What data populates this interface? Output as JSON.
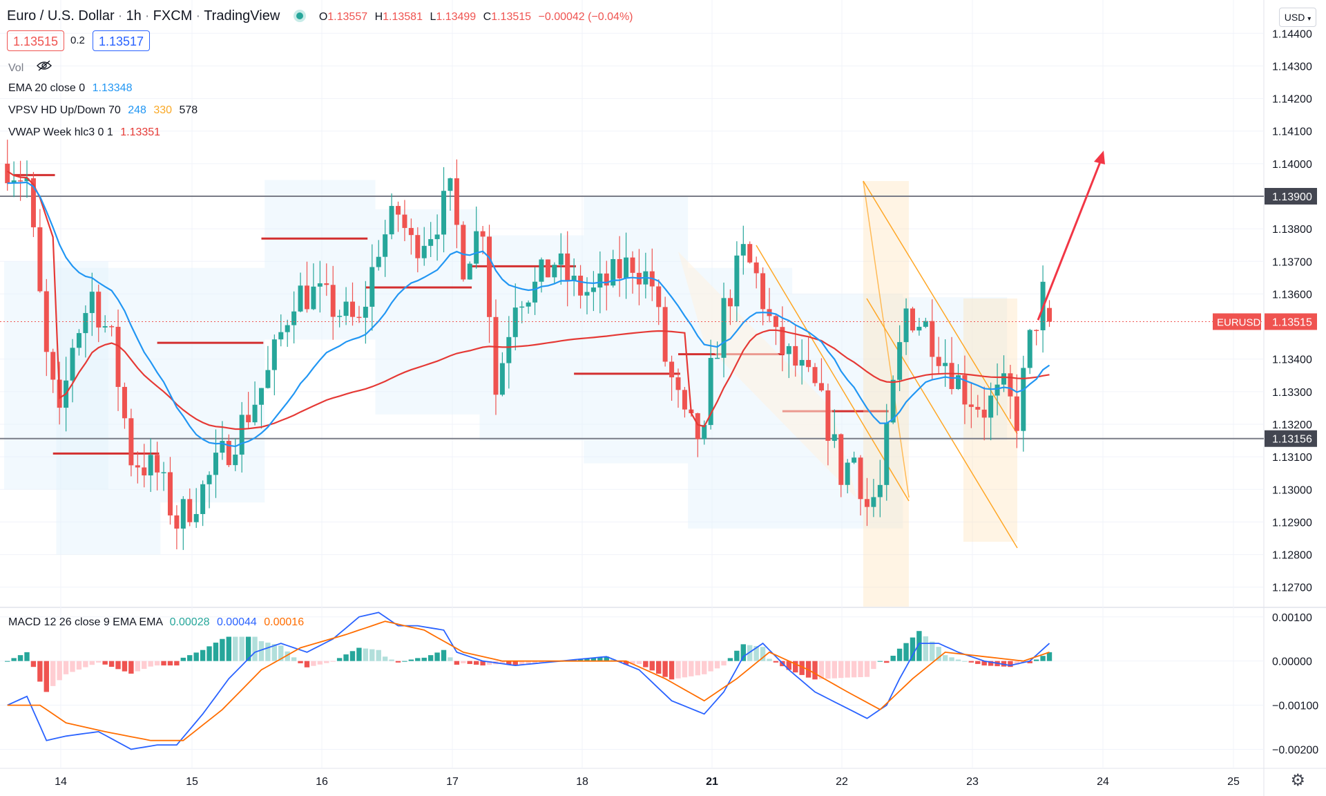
{
  "header": {
    "symbol": "Euro / U.S. Dollar",
    "interval": "1h",
    "exchange": "FXCM",
    "source": "TradingView",
    "ohlc": {
      "o_label": "O",
      "o": "1.13557",
      "h_label": "H",
      "h": "1.13581",
      "l_label": "L",
      "l": "1.13499",
      "c_label": "C",
      "c": "1.13515",
      "change": "−0.00042 (−0.04%)"
    },
    "bid": "1.13515",
    "spread": "0.2",
    "ask": "1.13517",
    "currency_button": "USD"
  },
  "indicators": {
    "vol": {
      "label": "Vol"
    },
    "ema": {
      "label": "EMA 20 close 0",
      "value": "1.13348"
    },
    "vpsv": {
      "label": "VPSV HD Up/Down 70",
      "up": "248",
      "down": "330",
      "total": "578"
    },
    "vwap": {
      "label": "VWAP Week hlc3 0 1",
      "value": "1.13351"
    },
    "macd": {
      "label": "MACD 12 26 close 9 EMA EMA",
      "hist": "0.00028",
      "macd": "0.00044",
      "signal": "0.00016"
    }
  },
  "colors": {
    "up": "#26a69a",
    "down": "#ef5350",
    "ema": "#2196f3",
    "vwap": "#e53935",
    "macd_line": "#2962ff",
    "signal_line": "#ff6d00",
    "hline": "#787b86",
    "arrow": "#f23645"
  },
  "chart_data": {
    "type": "candlestick",
    "symbol": "EURUSD",
    "current_price": "1.13515",
    "y_axis": {
      "ticks": [
        "1.14400",
        "1.14300",
        "1.14200",
        "1.14100",
        "1.14000",
        "1.13800",
        "1.13700",
        "1.13600",
        "1.13400",
        "1.13300",
        "1.13200",
        "1.13100",
        "1.13000",
        "1.12900",
        "1.12800",
        "1.12700"
      ],
      "range": [
        1.1264,
        1.1446
      ]
    },
    "x_axis": {
      "ticks": [
        "14",
        "15",
        "16",
        "17",
        "18",
        "21",
        "22",
        "23",
        "24",
        "25"
      ]
    },
    "horizontal_levels": [
      {
        "label": "1.13900",
        "value": 1.139
      },
      {
        "label": "1.13156",
        "value": 1.13156
      }
    ],
    "projection_arrow": {
      "from": {
        "date": "23 (late)",
        "price": 1.1352
      },
      "to": {
        "date": "24",
        "price": 1.1404
      }
    },
    "price_anchors": [
      {
        "t": 0,
        "p": 1.14
      },
      {
        "t": 3,
        "p": 1.1395
      },
      {
        "t": 6,
        "p": 1.134
      },
      {
        "t": 8,
        "p": 1.132
      },
      {
        "t": 10,
        "p": 1.1345
      },
      {
        "t": 13,
        "p": 1.136
      },
      {
        "t": 16,
        "p": 1.1345
      },
      {
        "t": 19,
        "p": 1.131
      },
      {
        "t": 23,
        "p": 1.1305
      },
      {
        "t": 26,
        "p": 1.129
      },
      {
        "t": 30,
        "p": 1.13
      },
      {
        "t": 33,
        "p": 1.131
      },
      {
        "t": 36,
        "p": 1.132
      },
      {
        "t": 40,
        "p": 1.1335
      },
      {
        "t": 44,
        "p": 1.136
      },
      {
        "t": 47,
        "p": 1.136
      },
      {
        "t": 50,
        "p": 1.1356
      },
      {
        "t": 54,
        "p": 1.135
      },
      {
        "t": 57,
        "p": 1.1375
      },
      {
        "t": 60,
        "p": 1.1385
      },
      {
        "t": 62,
        "p": 1.1375
      },
      {
        "t": 65,
        "p": 1.138
      },
      {
        "t": 68,
        "p": 1.139
      },
      {
        "t": 70,
        "p": 1.137
      },
      {
        "t": 73,
        "p": 1.1382
      },
      {
        "t": 75,
        "p": 1.133
      },
      {
        "t": 78,
        "p": 1.136
      },
      {
        "t": 81,
        "p": 1.1362
      },
      {
        "t": 84,
        "p": 1.137
      },
      {
        "t": 87,
        "p": 1.1362
      },
      {
        "t": 90,
        "p": 1.136
      },
      {
        "t": 93,
        "p": 1.1365
      },
      {
        "t": 96,
        "p": 1.137
      },
      {
        "t": 99,
        "p": 1.1363
      },
      {
        "t": 101,
        "p": 1.134
      },
      {
        "t": 104,
        "p": 1.132
      },
      {
        "t": 107,
        "p": 1.1315
      },
      {
        "t": 108,
        "p": 1.1335
      },
      {
        "t": 110,
        "p": 1.1355
      },
      {
        "t": 113,
        "p": 1.1372
      },
      {
        "t": 115,
        "p": 1.1365
      },
      {
        "t": 118,
        "p": 1.1345
      },
      {
        "t": 121,
        "p": 1.1338
      },
      {
        "t": 124,
        "p": 1.133
      },
      {
        "t": 126,
        "p": 1.132
      },
      {
        "t": 128,
        "p": 1.1305
      },
      {
        "t": 130,
        "p": 1.131
      },
      {
        "t": 132,
        "p": 1.1295
      },
      {
        "t": 134,
        "p": 1.13
      },
      {
        "t": 136,
        "p": 1.133
      },
      {
        "t": 138,
        "p": 1.1355
      },
      {
        "t": 141,
        "p": 1.135
      },
      {
        "t": 144,
        "p": 1.134
      },
      {
        "t": 147,
        "p": 1.133
      },
      {
        "t": 150,
        "p": 1.1325
      },
      {
        "t": 153,
        "p": 1.133
      },
      {
        "t": 155,
        "p": 1.1322
      },
      {
        "t": 157,
        "p": 1.1345
      },
      {
        "t": 159,
        "p": 1.136
      },
      {
        "t": 160,
        "p": 1.1352
      }
    ],
    "macd_panel": {
      "ticks": [
        "0.00100",
        "0.00000",
        "−0.00100",
        "−0.00200"
      ],
      "range": [
        -0.0024,
        0.0012
      ],
      "macd_anchors": [
        {
          "t": 0,
          "v": -0.001
        },
        {
          "t": 3,
          "v": -0.0008
        },
        {
          "t": 6,
          "v": -0.0018
        },
        {
          "t": 9,
          "v": -0.0017
        },
        {
          "t": 14,
          "v": -0.0016
        },
        {
          "t": 19,
          "v": -0.002
        },
        {
          "t": 23,
          "v": -0.0019
        },
        {
          "t": 26,
          "v": -0.0019
        },
        {
          "t": 30,
          "v": -0.0012
        },
        {
          "t": 34,
          "v": -0.0004
        },
        {
          "t": 38,
          "v": 0.0002
        },
        {
          "t": 42,
          "v": 0.0004
        },
        {
          "t": 46,
          "v": 0.0002
        },
        {
          "t": 50,
          "v": 0.0005
        },
        {
          "t": 54,
          "v": 0.001
        },
        {
          "t": 57,
          "v": 0.0011
        },
        {
          "t": 60,
          "v": 0.0008
        },
        {
          "t": 63,
          "v": 0.0008
        },
        {
          "t": 67,
          "v": 0.0007
        },
        {
          "t": 69,
          "v": 0.0002
        },
        {
          "t": 73,
          "v": 0.0
        },
        {
          "t": 78,
          "v": -0.0001
        },
        {
          "t": 85,
          "v": 0.0
        },
        {
          "t": 92,
          "v": 0.0001
        },
        {
          "t": 97,
          "v": -0.0002
        },
        {
          "t": 102,
          "v": -0.0009
        },
        {
          "t": 107,
          "v": -0.0012
        },
        {
          "t": 110,
          "v": -0.0007
        },
        {
          "t": 113,
          "v": 0.0001
        },
        {
          "t": 116,
          "v": 0.0004
        },
        {
          "t": 120,
          "v": -0.0002
        },
        {
          "t": 124,
          "v": -0.0007
        },
        {
          "t": 128,
          "v": -0.001
        },
        {
          "t": 132,
          "v": -0.0013
        },
        {
          "t": 135,
          "v": -0.001
        },
        {
          "t": 137,
          "v": -0.0004
        },
        {
          "t": 140,
          "v": 0.0004
        },
        {
          "t": 143,
          "v": 0.0004
        },
        {
          "t": 146,
          "v": 0.0002
        },
        {
          "t": 150,
          "v": 0.0
        },
        {
          "t": 154,
          "v": -0.0001
        },
        {
          "t": 157,
          "v": 0.0
        },
        {
          "t": 160,
          "v": 0.0004
        }
      ],
      "signal_anchors": [
        {
          "t": 0,
          "v": -0.001
        },
        {
          "t": 5,
          "v": -0.001
        },
        {
          "t": 9,
          "v": -0.0014
        },
        {
          "t": 15,
          "v": -0.0016
        },
        {
          "t": 22,
          "v": -0.0018
        },
        {
          "t": 27,
          "v": -0.0018
        },
        {
          "t": 33,
          "v": -0.0011
        },
        {
          "t": 39,
          "v": -0.0002
        },
        {
          "t": 45,
          "v": 0.0003
        },
        {
          "t": 52,
          "v": 0.0006
        },
        {
          "t": 58,
          "v": 0.0009
        },
        {
          "t": 64,
          "v": 0.0007
        },
        {
          "t": 70,
          "v": 0.0002
        },
        {
          "t": 76,
          "v": 0.0
        },
        {
          "t": 85,
          "v": 0.0
        },
        {
          "t": 95,
          "v": 0.0
        },
        {
          "t": 101,
          "v": -0.0004
        },
        {
          "t": 107,
          "v": -0.0009
        },
        {
          "t": 112,
          "v": -0.0004
        },
        {
          "t": 117,
          "v": 0.0002
        },
        {
          "t": 123,
          "v": -0.0002
        },
        {
          "t": 129,
          "v": -0.0007
        },
        {
          "t": 134,
          "v": -0.0011
        },
        {
          "t": 139,
          "v": -0.0004
        },
        {
          "t": 144,
          "v": 0.0002
        },
        {
          "t": 150,
          "v": 0.0001
        },
        {
          "t": 156,
          "v": 0.0
        },
        {
          "t": 160,
          "v": 0.0002
        }
      ]
    }
  }
}
